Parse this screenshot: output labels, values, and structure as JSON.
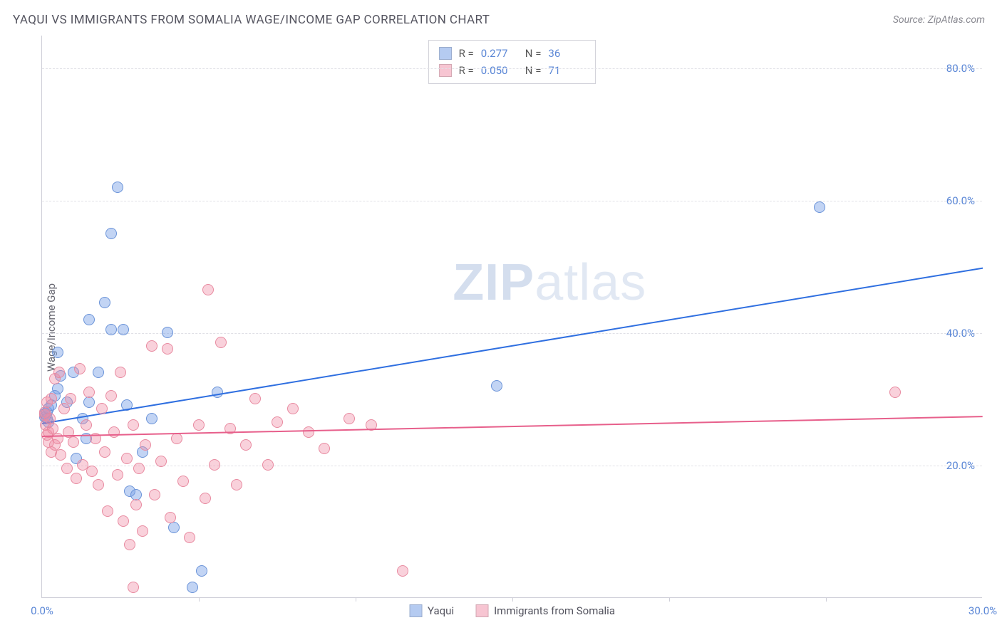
{
  "header": {
    "title": "YAQUI VS IMMIGRANTS FROM SOMALIA WAGE/INCOME GAP CORRELATION CHART",
    "source": "Source: ZipAtlas.com"
  },
  "chart": {
    "type": "scatter",
    "ylabel": "Wage/Income Gap",
    "background_color": "#ffffff",
    "grid_color": "#e0e0e6",
    "axis_color": "#cfcfd8",
    "tick_label_color": "#5b87d6",
    "tick_fontsize": 15,
    "label_fontsize": 15,
    "xlim": [
      0,
      30
    ],
    "ylim": [
      0,
      85
    ],
    "xtick_labels": [
      {
        "x": 0,
        "label": "0.0%"
      },
      {
        "x": 30,
        "label": "30.0%"
      }
    ],
    "xtick_marks": [
      5,
      10,
      15,
      20,
      25
    ],
    "ytick_labels": [
      {
        "y": 20,
        "label": "20.0%"
      },
      {
        "y": 40,
        "label": "40.0%"
      },
      {
        "y": 60,
        "label": "60.0%"
      },
      {
        "y": 80,
        "label": "80.0%"
      }
    ],
    "watermark": {
      "bold": "ZIP",
      "rest": "atlas"
    },
    "series": [
      {
        "name": "Yaqui",
        "fill_color": "rgba(120,160,230,0.45)",
        "stroke_color": "#6a93d8",
        "trend_color": "#2f6fe0",
        "trend_width": 2,
        "trend": {
          "x1": 0,
          "y1": 26.5,
          "x2": 30,
          "y2": 50.0
        },
        "marker_size": 16,
        "points": [
          [
            0.1,
            27.2
          ],
          [
            0.1,
            27.8
          ],
          [
            0.15,
            28.0
          ],
          [
            0.15,
            27.0
          ],
          [
            0.2,
            26.5
          ],
          [
            0.2,
            28.5
          ],
          [
            0.3,
            29.0
          ],
          [
            0.4,
            30.5
          ],
          [
            0.5,
            31.5
          ],
          [
            0.5,
            37.0
          ],
          [
            0.6,
            33.5
          ],
          [
            0.8,
            29.5
          ],
          [
            1.0,
            34.0
          ],
          [
            1.1,
            21.0
          ],
          [
            1.3,
            27.0
          ],
          [
            1.4,
            24.0
          ],
          [
            1.5,
            42.0
          ],
          [
            1.5,
            29.5
          ],
          [
            1.8,
            34.0
          ],
          [
            2.0,
            44.5
          ],
          [
            2.2,
            55.0
          ],
          [
            2.2,
            40.5
          ],
          [
            2.4,
            62.0
          ],
          [
            2.6,
            40.5
          ],
          [
            2.7,
            29.0
          ],
          [
            2.8,
            16.0
          ],
          [
            3.0,
            15.5
          ],
          [
            3.2,
            22.0
          ],
          [
            3.5,
            27.0
          ],
          [
            4.0,
            40.0
          ],
          [
            4.2,
            10.5
          ],
          [
            4.8,
            1.5
          ],
          [
            5.1,
            4.0
          ],
          [
            5.6,
            31.0
          ],
          [
            14.5,
            32.0
          ],
          [
            24.8,
            59.0
          ]
        ]
      },
      {
        "name": "Immigrants from Somalia",
        "fill_color": "rgba(240,140,165,0.40)",
        "stroke_color": "#e88aa0",
        "trend_color": "#e75f8b",
        "trend_width": 2,
        "trend": {
          "x1": 0,
          "y1": 24.5,
          "x2": 30,
          "y2": 27.5
        },
        "marker_size": 16,
        "points": [
          [
            0.1,
            27.5
          ],
          [
            0.1,
            28.0
          ],
          [
            0.12,
            26.0
          ],
          [
            0.15,
            24.5
          ],
          [
            0.15,
            29.5
          ],
          [
            0.2,
            25.0
          ],
          [
            0.2,
            23.5
          ],
          [
            0.25,
            27.0
          ],
          [
            0.3,
            22.0
          ],
          [
            0.3,
            30.0
          ],
          [
            0.35,
            25.5
          ],
          [
            0.4,
            23.0
          ],
          [
            0.4,
            33.0
          ],
          [
            0.5,
            24.0
          ],
          [
            0.55,
            34.0
          ],
          [
            0.6,
            21.5
          ],
          [
            0.7,
            28.5
          ],
          [
            0.8,
            19.5
          ],
          [
            0.85,
            25.0
          ],
          [
            0.9,
            30.0
          ],
          [
            1.0,
            23.5
          ],
          [
            1.1,
            18.0
          ],
          [
            1.2,
            34.5
          ],
          [
            1.3,
            20.0
          ],
          [
            1.4,
            26.0
          ],
          [
            1.5,
            31.0
          ],
          [
            1.6,
            19.0
          ],
          [
            1.7,
            24.0
          ],
          [
            1.8,
            17.0
          ],
          [
            1.9,
            28.5
          ],
          [
            2.0,
            22.0
          ],
          [
            2.1,
            13.0
          ],
          [
            2.2,
            30.5
          ],
          [
            2.3,
            25.0
          ],
          [
            2.4,
            18.5
          ],
          [
            2.5,
            34.0
          ],
          [
            2.6,
            11.5
          ],
          [
            2.7,
            21.0
          ],
          [
            2.8,
            8.0
          ],
          [
            2.9,
            26.0
          ],
          [
            3.0,
            14.0
          ],
          [
            3.1,
            19.5
          ],
          [
            3.2,
            10.0
          ],
          [
            3.3,
            23.0
          ],
          [
            3.5,
            38.0
          ],
          [
            3.6,
            15.5
          ],
          [
            3.8,
            20.5
          ],
          [
            4.0,
            37.5
          ],
          [
            4.1,
            12.0
          ],
          [
            4.3,
            24.0
          ],
          [
            4.5,
            17.5
          ],
          [
            4.7,
            9.0
          ],
          [
            5.0,
            26.0
          ],
          [
            5.2,
            15.0
          ],
          [
            5.3,
            46.5
          ],
          [
            5.5,
            20.0
          ],
          [
            5.7,
            38.5
          ],
          [
            6.0,
            25.5
          ],
          [
            6.2,
            17.0
          ],
          [
            6.5,
            23.0
          ],
          [
            6.8,
            30.0
          ],
          [
            7.2,
            20.0
          ],
          [
            7.5,
            26.5
          ],
          [
            8.0,
            28.5
          ],
          [
            8.5,
            25.0
          ],
          [
            9.0,
            22.5
          ],
          [
            9.8,
            27.0
          ],
          [
            10.5,
            26.0
          ],
          [
            11.5,
            4.0
          ],
          [
            27.2,
            31.0
          ],
          [
            2.9,
            1.5
          ]
        ]
      }
    ],
    "legend_top": {
      "border_color": "#d0d0d8",
      "rows": [
        {
          "swatch": "rgba(120,160,230,0.55)",
          "r_label": "R =",
          "r_value": "0.277",
          "n_label": "N =",
          "n_value": "36"
        },
        {
          "swatch": "rgba(240,140,165,0.50)",
          "r_label": "R =",
          "r_value": "0.050",
          "n_label": "N =",
          "n_value": "71"
        }
      ]
    },
    "legend_bottom": [
      {
        "swatch": "rgba(120,160,230,0.55)",
        "label": "Yaqui"
      },
      {
        "swatch": "rgba(240,140,165,0.50)",
        "label": "Immigrants from Somalia"
      }
    ]
  }
}
